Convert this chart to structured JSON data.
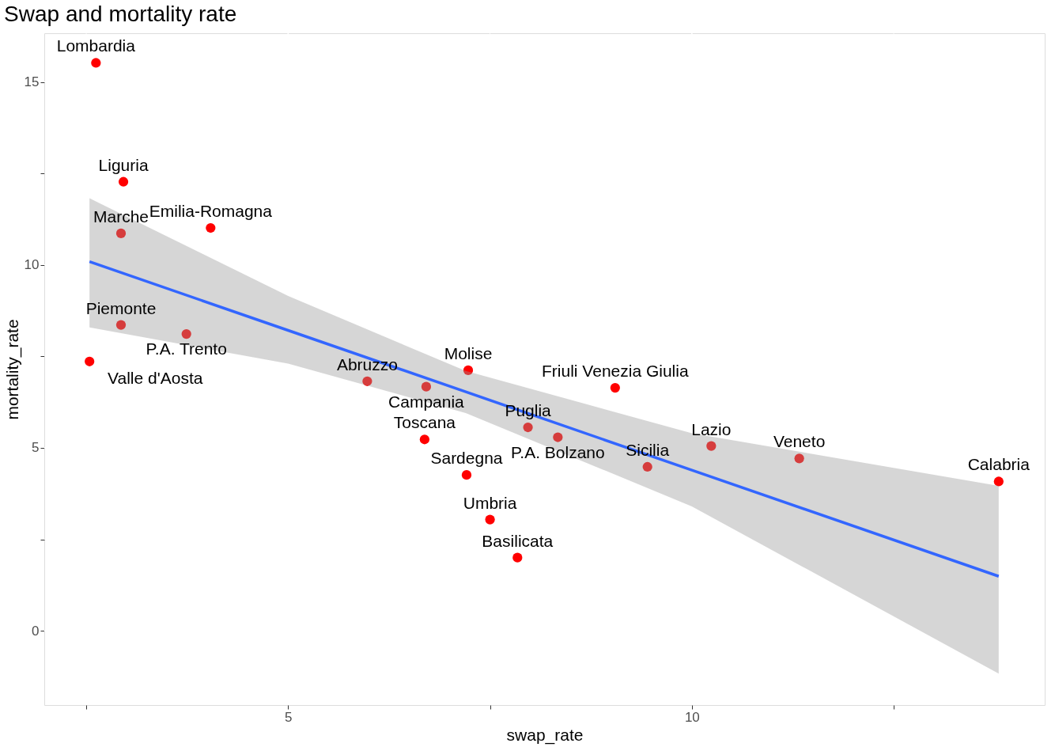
{
  "chart_data": {
    "type": "scatter",
    "title": "Swap and mortality rate",
    "xlabel": "swap_rate",
    "ylabel": "mortality_rate",
    "xlim": [
      1.98,
      14.37
    ],
    "ylim": [
      -2.03,
      16.33
    ],
    "xticks": [
      {
        "value": 2.5,
        "label": null
      },
      5,
      {
        "value": 7.5,
        "label": null
      },
      10,
      {
        "value": 12.5,
        "label": null
      }
    ],
    "yticks": [
      0,
      {
        "value": 2.5,
        "label": null
      },
      5,
      {
        "value": 7.5,
        "label": null
      },
      10,
      {
        "value": 12.5,
        "label": null
      },
      15
    ],
    "grid": true,
    "marker": "circle",
    "series": [
      {
        "color": "#ff0000",
        "x": [
          2.62,
          2.96,
          2.93,
          4.04,
          2.93,
          3.74,
          2.54,
          5.98,
          6.71,
          7.23,
          9.05,
          6.69,
          7.97,
          8.34,
          7.21,
          7.5,
          7.84,
          9.45,
          10.24,
          11.33,
          13.8
        ],
        "values": [
          15.52,
          12.27,
          10.86,
          11.01,
          8.36,
          8.11,
          7.36,
          6.82,
          6.67,
          7.12,
          6.64,
          5.23,
          5.56,
          5.29,
          4.26,
          3.04,
          2.0,
          4.48,
          5.05,
          4.71,
          4.08
        ]
      },
      {
        "type": "line",
        "marker": "none",
        "color": "#3366ff",
        "line_style": "solid",
        "x": [
          2.54,
          5,
          7.2,
          10,
          13.8
        ],
        "values": [
          10.09,
          8.21,
          6.53,
          4.39,
          1.49
        ],
        "lower": [
          8.29,
          7.3,
          5.95,
          3.4,
          -1.17
        ],
        "upper": [
          11.82,
          9.15,
          7.1,
          5.4,
          3.96
        ]
      }
    ],
    "annotations": [
      {
        "text": "Lombardia",
        "x": 2.62,
        "y": 15.52
      },
      {
        "text": "Liguria",
        "x": 2.96,
        "y": 12.27
      },
      {
        "text": "Marche",
        "x": 2.93,
        "y": 10.86
      },
      {
        "text": "Emilia-Romagna",
        "x": 4.04,
        "y": 11.01
      },
      {
        "text": "Piemonte",
        "x": 2.93,
        "y": 8.36
      },
      {
        "text": "P.A. Trento",
        "x": 3.74,
        "y": 8.11
      },
      {
        "text": "Valle d'Aosta",
        "x": 2.54,
        "y": 7.36
      },
      {
        "text": "Abruzzo",
        "x": 5.98,
        "y": 6.82
      },
      {
        "text": "Campania",
        "x": 6.71,
        "y": 6.67
      },
      {
        "text": "Molise",
        "x": 7.23,
        "y": 7.12
      },
      {
        "text": "Friuli Venezia Giulia",
        "x": 9.05,
        "y": 6.64
      },
      {
        "text": "Toscana",
        "x": 6.69,
        "y": 5.23
      },
      {
        "text": "Puglia",
        "x": 7.97,
        "y": 5.56
      },
      {
        "text": "P.A. Bolzano",
        "x": 8.34,
        "y": 5.29
      },
      {
        "text": "Sardegna",
        "x": 7.21,
        "y": 4.26
      },
      {
        "text": "Umbria",
        "x": 7.5,
        "y": 3.04
      },
      {
        "text": "Basilicata",
        "x": 7.84,
        "y": 2.0
      },
      {
        "text": "Sicilia",
        "x": 9.45,
        "y": 4.48
      },
      {
        "text": "Lazio",
        "x": 10.24,
        "y": 5.05
      },
      {
        "text": "Veneto",
        "x": 11.33,
        "y": 4.71
      },
      {
        "text": "Calabria",
        "x": 13.8,
        "y": 4.08
      }
    ]
  }
}
